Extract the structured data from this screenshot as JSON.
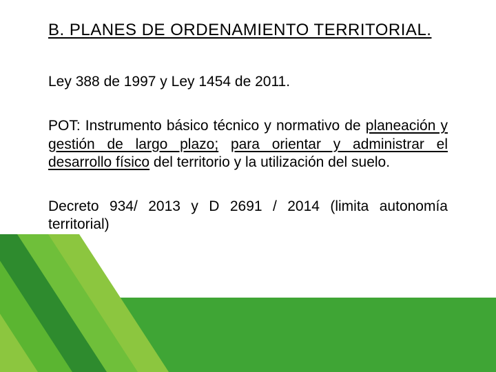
{
  "colors": {
    "background": "#ffffff",
    "text": "#000000",
    "band": "#3fa535",
    "diag_light": "#8cc63f",
    "diag_mid": "#5bb531",
    "diag_dark": "#2e8b2e",
    "diag_extra": "#6fbf3a"
  },
  "typography": {
    "title_fontsize": 24,
    "body_fontsize": 21,
    "font_family": "Arial"
  },
  "layout": {
    "band_height": 108,
    "diag_width": 260,
    "diag_height": 200
  },
  "title": "B. PLANES DE ORDENAMIENTO TERRITORIAL.",
  "para1": "Ley 388 de 1997 y Ley 1454 de 2011.",
  "para2": {
    "lead": "POT:  Instrumento básico técnico y normativo de ",
    "u1": "planeación y gestión de largo plazo;",
    "mid1": " ",
    "u2": "para orientar y administrar el desarrollo físico",
    "tail": " del territorio y la utilización del suelo."
  },
  "para3": "Decreto 934/ 2013  y D 2691 / 2014 (limita autonomía territorial)"
}
